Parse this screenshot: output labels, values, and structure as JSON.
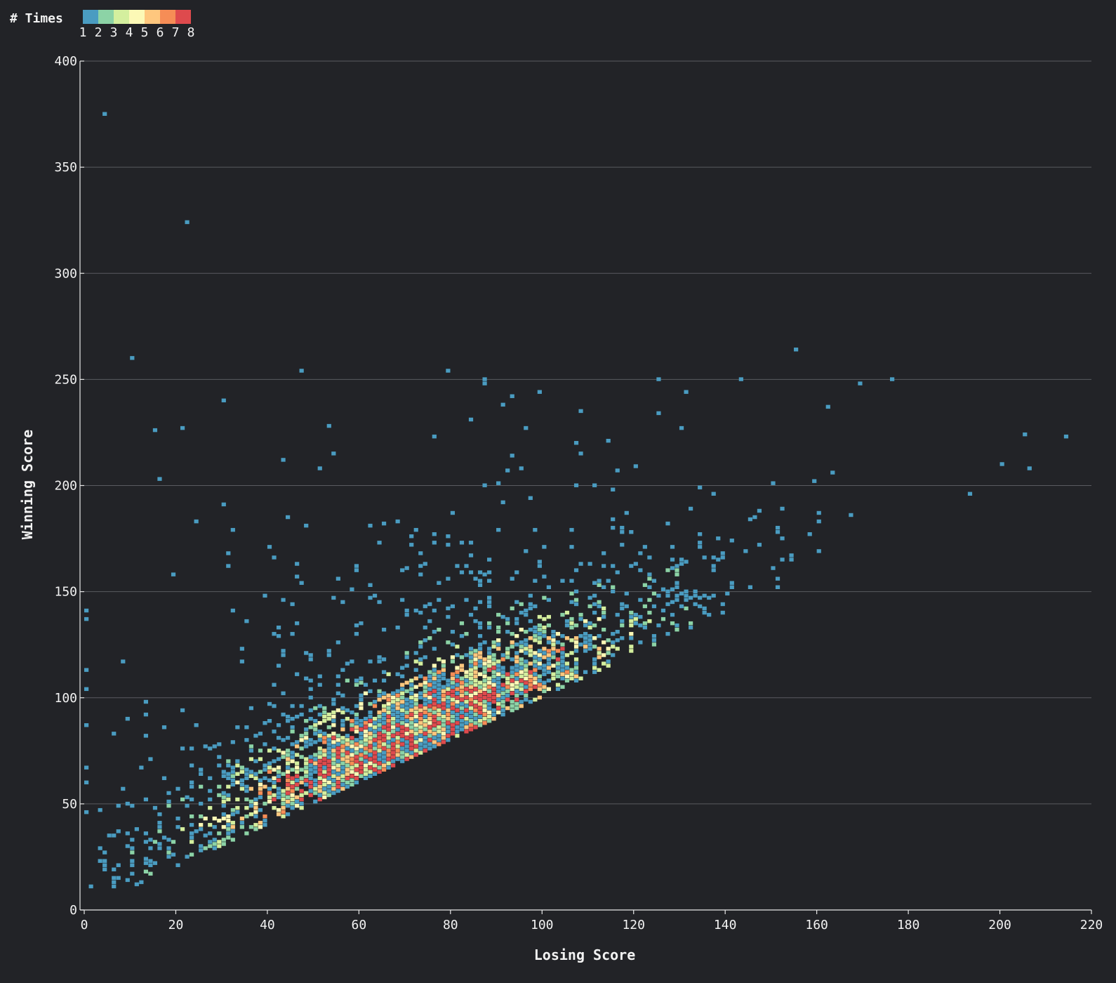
{
  "chart_data": {
    "type": "heatmap",
    "xlabel": "Losing Score",
    "ylabel": "Winning Score",
    "xlim": [
      0,
      220
    ],
    "ylim": [
      0,
      400
    ],
    "x_ticks": [
      "0",
      "20",
      "40",
      "60",
      "80",
      "100",
      "120",
      "140",
      "160",
      "180",
      "200",
      "220"
    ],
    "y_ticks": [
      "0",
      "50",
      "100",
      "150",
      "200",
      "250",
      "300",
      "350",
      "400"
    ],
    "grid": "horizontal",
    "bin_width_x": 1,
    "bin_height_y": 2,
    "legend": {
      "title": "# Times",
      "placement": "top-left",
      "labels": [
        "1",
        "2",
        "3",
        "4",
        "5",
        "6",
        "7",
        "8"
      ],
      "colors": [
        "#4a9cc1",
        "#8cd3a6",
        "#d4ef9e",
        "#fcf9b6",
        "#fec77e",
        "#f68d56",
        "#de4a4d"
      ]
    },
    "outliers": [
      [
        4,
        374
      ],
      [
        22,
        323
      ],
      [
        10,
        259
      ],
      [
        47,
        253
      ],
      [
        79,
        253
      ],
      [
        155,
        263
      ],
      [
        176,
        249
      ],
      [
        125,
        249
      ],
      [
        143,
        249
      ],
      [
        30,
        239
      ],
      [
        15,
        225
      ],
      [
        21,
        226
      ],
      [
        214,
        222
      ],
      [
        205,
        223
      ],
      [
        200,
        209
      ],
      [
        206,
        207
      ],
      [
        193,
        195
      ],
      [
        0,
        140
      ],
      [
        0,
        136
      ],
      [
        0,
        112
      ],
      [
        0,
        103
      ],
      [
        0,
        86
      ],
      [
        0,
        66
      ],
      [
        0,
        59
      ],
      [
        0,
        45
      ]
    ],
    "density_model": {
      "region": "winning_score >= losing_score",
      "peak_x": 72,
      "peak_margin": 14,
      "typical_margin_spread": 22,
      "max_count": 8
    }
  }
}
